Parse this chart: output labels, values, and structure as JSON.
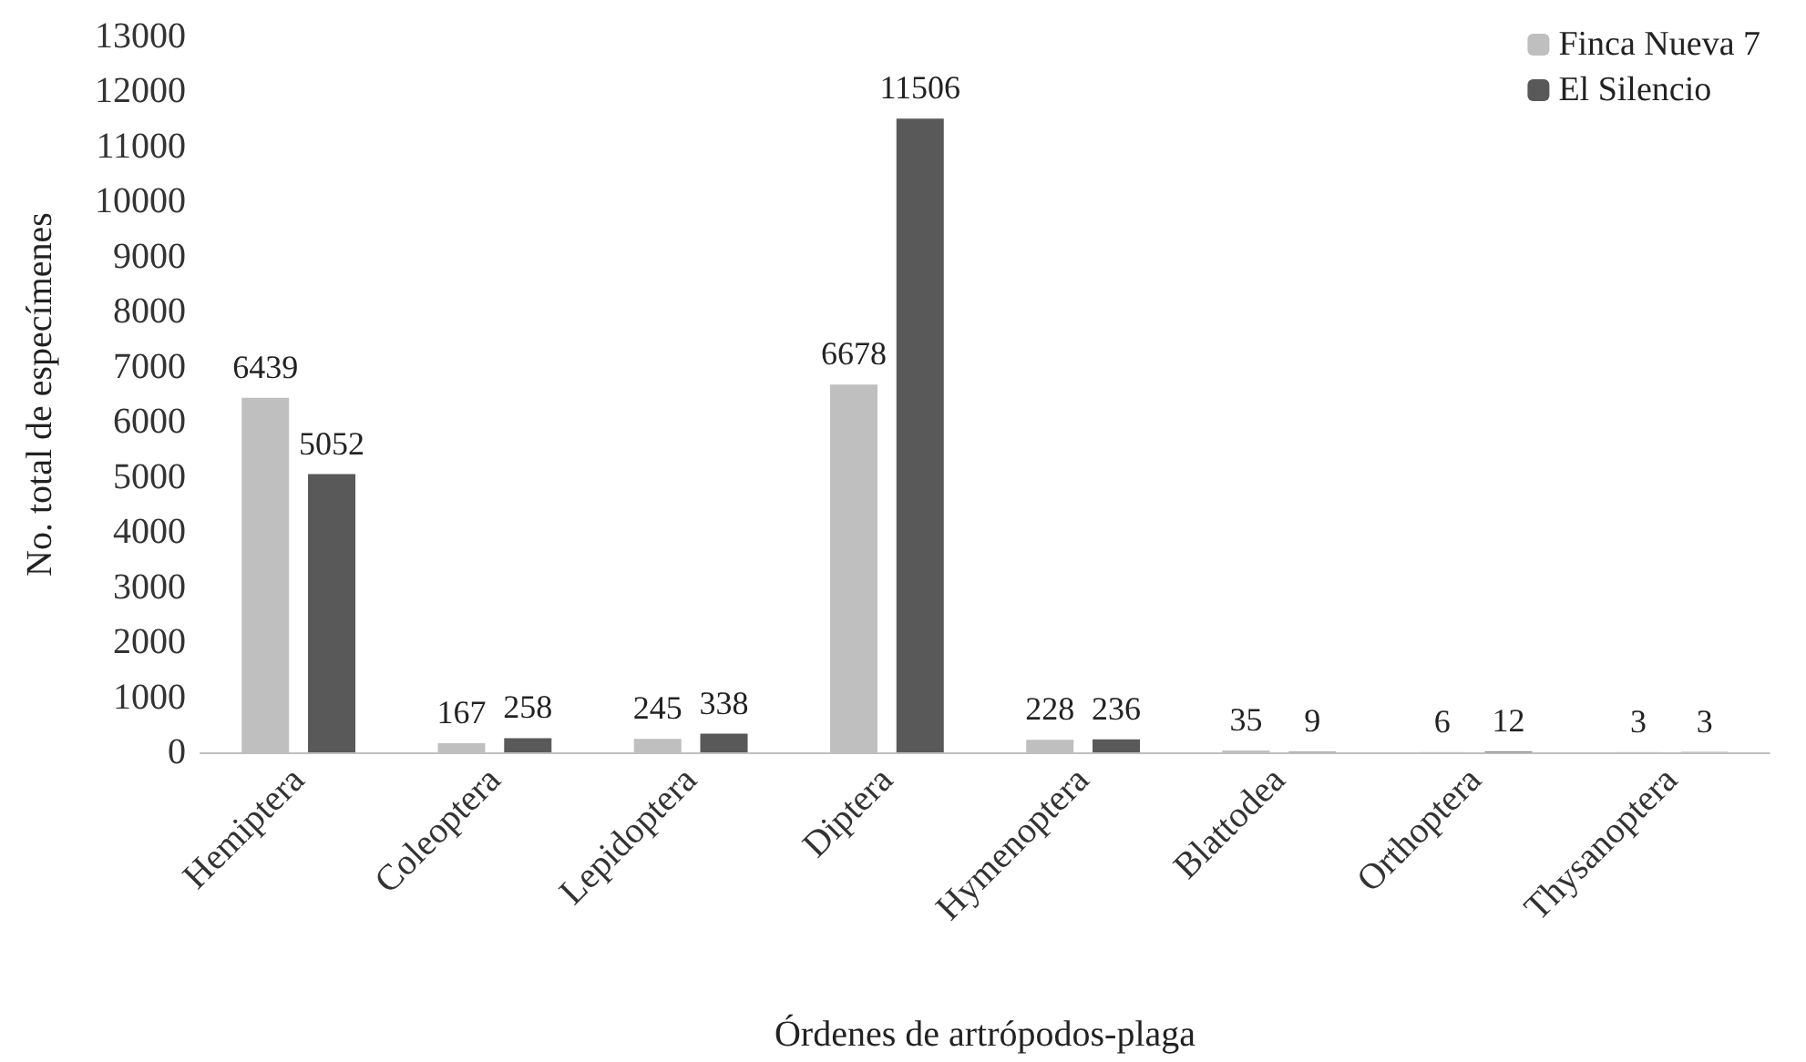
{
  "chart_data": {
    "type": "bar",
    "xlabel": "Órdenes de artrópodos-plaga",
    "ylabel": "No. total de especímenes",
    "categories": [
      "Hemiptera",
      "Coleoptera",
      "Lepidoptera",
      "Diptera",
      "Hymenoptera",
      "Blattodea",
      "Orthoptera",
      "Thysanoptera"
    ],
    "series": [
      {
        "name": "Finca Nueva 7",
        "color": "#bfbfbf",
        "values": [
          6439,
          167,
          245,
          6678,
          228,
          35,
          6,
          3
        ]
      },
      {
        "name": "El Silencio",
        "color": "#595959",
        "values": [
          5052,
          258,
          338,
          11506,
          236,
          9,
          12,
          3
        ]
      }
    ],
    "ylim": [
      0,
      13000
    ],
    "yticks": [
      0,
      1000,
      2000,
      3000,
      4000,
      5000,
      6000,
      7000,
      8000,
      9000,
      10000,
      11000,
      12000,
      13000
    ],
    "grid": false,
    "legend": "top right",
    "data_labels": true
  }
}
